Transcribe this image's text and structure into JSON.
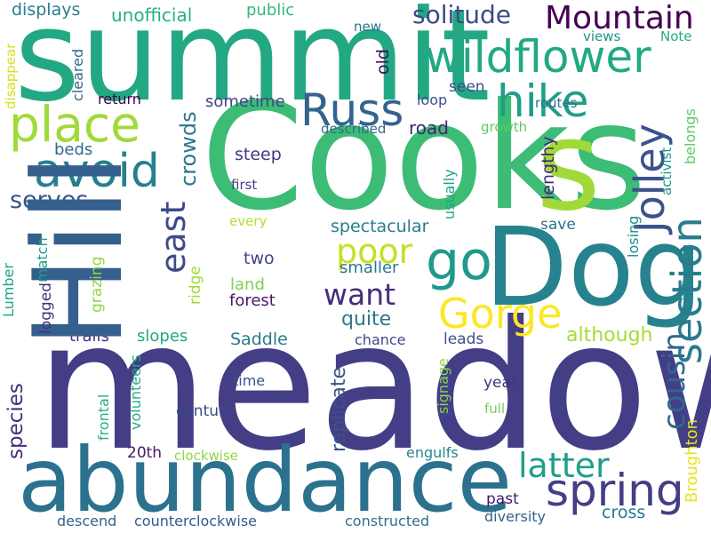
{
  "words": [
    {
      "text": "meadow",
      "color": "#433e85"
    },
    {
      "text": "Cooks",
      "color": "#3cbc75"
    },
    {
      "text": "summit",
      "color": "#23a884"
    },
    {
      "text": "Dog",
      "color": "#26828e"
    },
    {
      "text": "Hill",
      "color": "#355f8d"
    },
    {
      "text": "s",
      "color": "#a0da39"
    },
    {
      "text": "abundance",
      "color": "#2c728e"
    },
    {
      "text": "spring",
      "color": "#433e85"
    },
    {
      "text": "wildflower",
      "color": "#22a884"
    },
    {
      "text": "place",
      "color": "#a0da39"
    },
    {
      "text": "avoid",
      "color": "#277f8e"
    },
    {
      "text": "Russ",
      "color": "#33638d"
    },
    {
      "text": "hike",
      "color": "#1f9e89"
    },
    {
      "text": "go",
      "color": "#1e9b8a"
    },
    {
      "text": "Gorge",
      "color": "#fde725"
    },
    {
      "text": "Mountain",
      "color": "#440154"
    },
    {
      "text": "section",
      "color": "#287c8e"
    },
    {
      "text": "Jolley",
      "color": "#3b528b"
    },
    {
      "text": "latter",
      "color": "#1f9e89"
    },
    {
      "text": "cousin",
      "color": "#31688e"
    },
    {
      "text": "want",
      "color": "#472d7b"
    },
    {
      "text": "poor",
      "color": "#c5e021"
    },
    {
      "text": "solitude",
      "color": "#3e4989"
    },
    {
      "text": "serves",
      "color": "#3b528b"
    },
    {
      "text": "east",
      "color": "#3e4a89"
    },
    {
      "text": "crowds",
      "color": "#2a788e"
    },
    {
      "text": "species",
      "color": "#472d7b"
    },
    {
      "text": "replicate",
      "color": "#3b528b"
    },
    {
      "text": "unofficial",
      "color": "#2ab07f"
    },
    {
      "text": "displays",
      "color": "#287d8e"
    },
    {
      "text": "public",
      "color": "#35b779"
    },
    {
      "text": "road",
      "color": "#482374"
    },
    {
      "text": "steep",
      "color": "#443983"
    },
    {
      "text": "two",
      "color": "#414487"
    },
    {
      "text": "land",
      "color": "#7ad151"
    },
    {
      "text": "forest",
      "color": "#48186a"
    },
    {
      "text": "quite",
      "color": "#2a788e"
    },
    {
      "text": "Saddle",
      "color": "#2a788e"
    },
    {
      "text": "slopes",
      "color": "#22a884"
    },
    {
      "text": "trails",
      "color": "#46327e"
    },
    {
      "text": "beds",
      "color": "#306a8e"
    },
    {
      "text": "sometime",
      "color": "#414487"
    },
    {
      "text": "return",
      "color": "#440154"
    },
    {
      "text": "loop",
      "color": "#3b528b"
    },
    {
      "text": "routes",
      "color": "#2d708e"
    },
    {
      "text": "seen",
      "color": "#3e4989"
    },
    {
      "text": "views",
      "color": "#20928c"
    },
    {
      "text": "Note",
      "color": "#25ab82"
    },
    {
      "text": "new",
      "color": "#2c738e"
    },
    {
      "text": "old",
      "color": "#460a5d"
    },
    {
      "text": "cleared",
      "color": "#31688e"
    },
    {
      "text": "disappear",
      "color": "#d2e21b"
    },
    {
      "text": "described",
      "color": "#2f6c8e"
    },
    {
      "text": "growth",
      "color": "#5ec962"
    },
    {
      "text": "lengthy",
      "color": "#482878"
    },
    {
      "text": "belongs",
      "color": "#5ec962"
    },
    {
      "text": "activist",
      "color": "#1f958b"
    },
    {
      "text": "losing",
      "color": "#218e8d"
    },
    {
      "text": "save",
      "color": "#2c728e"
    },
    {
      "text": "every",
      "color": "#b5de2b"
    },
    {
      "text": "first",
      "color": "#433e85"
    },
    {
      "text": "smaller",
      "color": "#2a778e"
    },
    {
      "text": "spectacular",
      "color": "#287d8e"
    },
    {
      "text": "ridge",
      "color": "#a0da39"
    },
    {
      "text": "grazing",
      "color": "#90d743"
    },
    {
      "text": "match",
      "color": "#1f9e89"
    },
    {
      "text": "Lumber",
      "color": "#20a486"
    },
    {
      "text": "logged",
      "color": "#46307e"
    },
    {
      "text": "usually",
      "color": "#1fa187"
    },
    {
      "text": "although",
      "color": "#a8db34"
    },
    {
      "text": "leads",
      "color": "#3d4d8a"
    },
    {
      "text": "chance",
      "color": "#3f4889"
    },
    {
      "text": "signage",
      "color": "#85d54a"
    },
    {
      "text": "year",
      "color": "#46327e"
    },
    {
      "text": "full",
      "color": "#75d054"
    },
    {
      "text": "time",
      "color": "#3a548c"
    },
    {
      "text": "century",
      "color": "#3e4989"
    },
    {
      "text": "frontal",
      "color": "#29af7f"
    },
    {
      "text": "volunteers",
      "color": "#26ad81"
    },
    {
      "text": "20th",
      "color": "#48186a"
    },
    {
      "text": "clockwise",
      "color": "#8fd744"
    },
    {
      "text": "engulfs",
      "color": "#23898e"
    },
    {
      "text": "past",
      "color": "#481769"
    },
    {
      "text": "Broughton",
      "color": "#e5e419"
    },
    {
      "text": "cross",
      "color": "#2a788e"
    },
    {
      "text": "diversity",
      "color": "#33638d"
    },
    {
      "text": "descend",
      "color": "#33638d"
    },
    {
      "text": "counterclockwise",
      "color": "#38588c"
    },
    {
      "text": "constructed",
      "color": "#2d708e"
    }
  ]
}
